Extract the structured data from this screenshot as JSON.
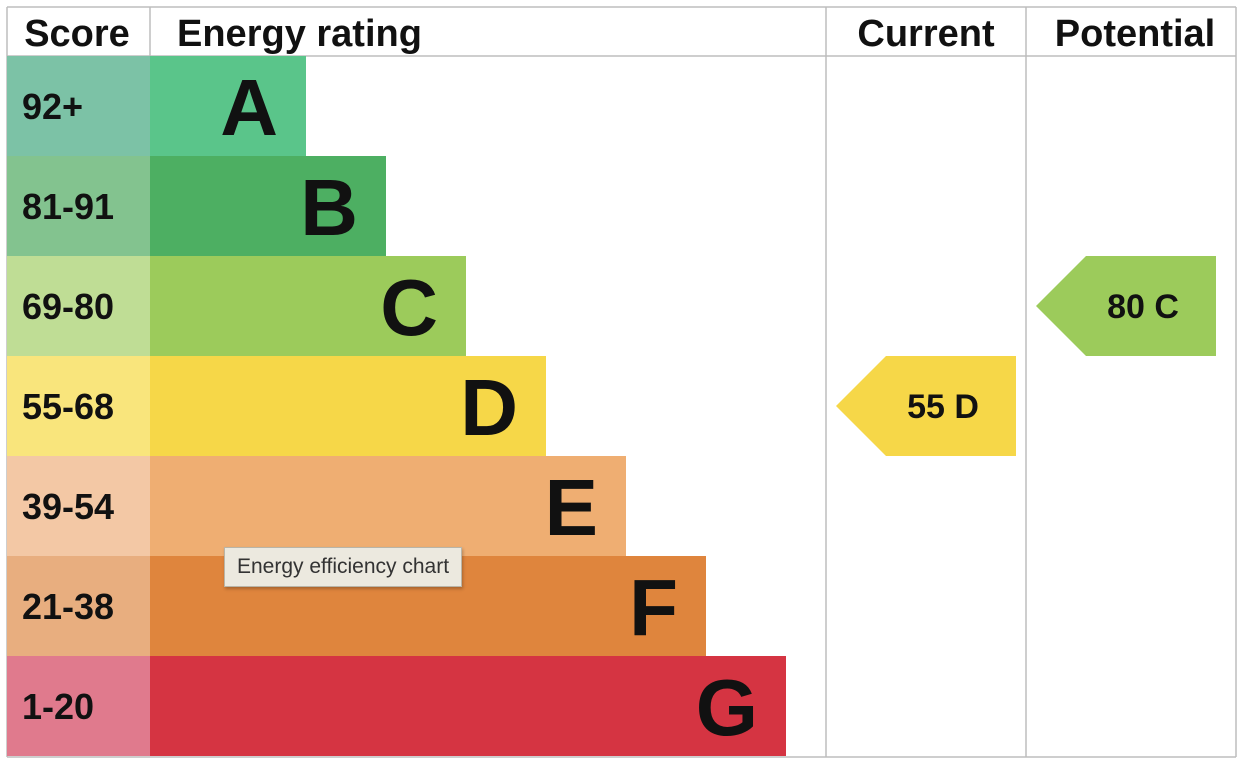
{
  "headers": {
    "score": "Score",
    "rating": "Energy rating",
    "current": "Current",
    "potential": "Potential"
  },
  "chart_data": {
    "type": "bar",
    "bands": [
      {
        "range": "92+",
        "letter": "A",
        "color": "#5ac58a",
        "score_color": "#7cc2a6"
      },
      {
        "range": "81-91",
        "letter": "B",
        "color": "#4daf62",
        "score_color": "#83c38f"
      },
      {
        "range": "69-80",
        "letter": "C",
        "color": "#9ccb5b",
        "score_color": "#bfdd95"
      },
      {
        "range": "55-68",
        "letter": "D",
        "color": "#f6d748",
        "score_color": "#f9e57c"
      },
      {
        "range": "39-54",
        "letter": "E",
        "color": "#efae72",
        "score_color": "#f3c8a5"
      },
      {
        "range": "21-38",
        "letter": "F",
        "color": "#df853d",
        "score_color": "#e8ae7f"
      },
      {
        "range": "1-20",
        "letter": "G",
        "color": "#d53442",
        "score_color": "#e07a8d"
      }
    ],
    "current": {
      "score": 55,
      "band": "D",
      "label": "55  D",
      "color": "#f6d748"
    },
    "potential": {
      "score": 80,
      "band": "C",
      "label": "80  C",
      "color": "#9ccb5b"
    }
  },
  "tooltip": "Energy efficiency chart"
}
